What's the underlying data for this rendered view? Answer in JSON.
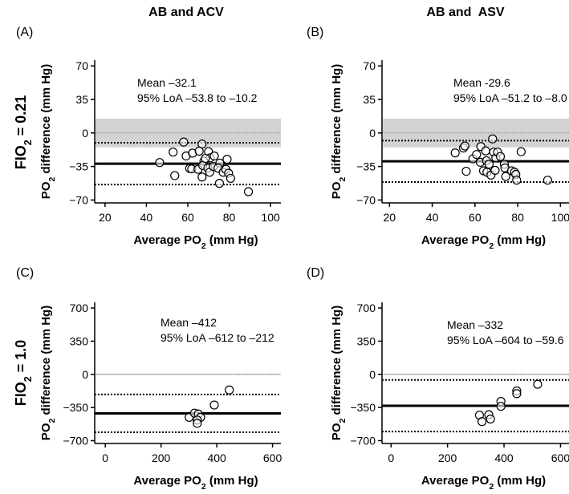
{
  "figure": {
    "columns": [
      "AB and ACV",
      "AB and  ASV"
    ],
    "rows": [
      {
        "pre": "FIO",
        "sub": "2",
        "post": " = 0.21"
      },
      {
        "pre": "FIO",
        "sub": "2",
        "post": " = 1.0"
      }
    ]
  },
  "chart_data": [
    {
      "type": "scatter",
      "panel": "(A)",
      "column": "AB and ACV",
      "row": "FIO2 = 0.21",
      "annotation": [
        "Mean –32.1",
        "95% LoA –53.8 to –10.2"
      ],
      "mean": -32.1,
      "loa": [
        -53.8,
        -10.2
      ],
      "band": [
        -15,
        15
      ],
      "xlabel": {
        "pre": "Average PO",
        "sub": "2",
        "post": " (mm Hg)"
      },
      "ylabel": {
        "pre": "PO",
        "sub": "2",
        "post": " difference (mm Hg)"
      },
      "xticks": [
        20,
        40,
        60,
        80,
        100
      ],
      "xtick_labels": [
        "20",
        "40",
        "60",
        "80",
        "100"
      ],
      "yticks": [
        70,
        35,
        0,
        -35,
        -70
      ],
      "ytick_labels": [
        "70",
        "35",
        "0",
        "−35",
        "−70"
      ],
      "xlim": [
        15,
        105
      ],
      "ylim": [
        -73,
        76
      ],
      "points": [
        [
          46.4,
          -30.9
        ],
        [
          58,
          -9.5
        ],
        [
          66.9,
          -11.6
        ],
        [
          52.9,
          -20
        ],
        [
          53.7,
          -44.5
        ],
        [
          59.2,
          -24
        ],
        [
          62.3,
          -21
        ],
        [
          65.5,
          -19
        ],
        [
          60.9,
          -37
        ],
        [
          61.9,
          -37.5
        ],
        [
          65,
          -38
        ],
        [
          66.9,
          -46
        ],
        [
          70,
          -19.5
        ],
        [
          70.8,
          -26
        ],
        [
          72.8,
          -24
        ],
        [
          67.8,
          -29.5
        ],
        [
          67.2,
          -34
        ],
        [
          69.7,
          -36.7
        ],
        [
          70.6,
          -41
        ],
        [
          72.3,
          -35
        ],
        [
          75.5,
          -31.5
        ],
        [
          74.6,
          -36.7
        ],
        [
          79,
          -27.5
        ],
        [
          77.1,
          -41
        ],
        [
          78.4,
          -38
        ],
        [
          79.7,
          -42
        ],
        [
          80.7,
          -47.4
        ],
        [
          75.3,
          -52.6
        ],
        [
          89.3,
          -61.3
        ],
        [
          68.5,
          -26.6
        ]
      ]
    },
    {
      "type": "scatter",
      "panel": "(B)",
      "column": "AB and ASV",
      "row": "FIO2 = 0.21",
      "annotation": [
        "Mean -29.6",
        "95% LoA –51.2 to –8.0"
      ],
      "mean": -29.6,
      "loa": [
        -51.2,
        -8.0
      ],
      "band": [
        -15,
        15
      ],
      "xlabel": {
        "pre": "Average PO",
        "sub": "2",
        "post": " (mm Hg)"
      },
      "ylabel": {
        "pre": "PO",
        "sub": "2",
        "post": " difference (mm Hg)"
      },
      "xticks": [
        20,
        40,
        60,
        80,
        100
      ],
      "xtick_labels": [
        "20",
        "40",
        "60",
        "80",
        "100"
      ],
      "yticks": [
        70,
        35,
        0,
        -35,
        -70
      ],
      "ytick_labels": [
        "70",
        "35",
        "0",
        "−35",
        "−70"
      ],
      "xlim": [
        16.5,
        104
      ],
      "ylim": [
        -73,
        76
      ],
      "points": [
        [
          50.75,
          -20.8
        ],
        [
          54.6,
          -15.7
        ],
        [
          55.3,
          -13.6
        ],
        [
          55.9,
          -40
        ],
        [
          68.25,
          -6.2
        ],
        [
          62.75,
          -14.2
        ],
        [
          59,
          -27
        ],
        [
          60.75,
          -22.5
        ],
        [
          62.5,
          -30.6
        ],
        [
          64,
          -39.5
        ],
        [
          65,
          -18.7
        ],
        [
          65.4,
          -29
        ],
        [
          65.6,
          -41
        ],
        [
          66.6,
          -32.6
        ],
        [
          67.5,
          -44
        ],
        [
          68.75,
          -20
        ],
        [
          69.75,
          -26
        ],
        [
          69.4,
          -39
        ],
        [
          70.6,
          -20
        ],
        [
          71.9,
          -24.6
        ],
        [
          73.75,
          -32.6
        ],
        [
          74,
          -36.5
        ],
        [
          74.4,
          -45.4
        ],
        [
          77.1,
          -39.5
        ],
        [
          78.5,
          -41
        ],
        [
          79.1,
          -43.3
        ],
        [
          79.5,
          -49.3
        ],
        [
          81.6,
          -19.6
        ],
        [
          94,
          -49.3
        ]
      ]
    },
    {
      "type": "scatter",
      "panel": "(C)",
      "column": "AB and ACV",
      "row": "FIO2 = 1.0",
      "annotation": [
        "Mean –412",
        "95% LoA –612 to –212"
      ],
      "mean": -412,
      "loa": [
        -612,
        -212
      ],
      "band": [
        -8,
        8
      ],
      "xlabel": {
        "pre": "Average PO",
        "sub": "2",
        "post": " (mm Hg)"
      },
      "ylabel": {
        "pre": "PO",
        "sub": "2",
        "post": " difference (mm Hg)"
      },
      "xticks": [
        0,
        200,
        400,
        600
      ],
      "xtick_labels": [
        "0",
        "200",
        "400",
        "600"
      ],
      "yticks": [
        700,
        350,
        0,
        -350,
        -700
      ],
      "ytick_labels": [
        "700",
        "350",
        "0",
        "−350",
        "−700"
      ],
      "xlim": [
        -38,
        630
      ],
      "ylim": [
        -730,
        760
      ],
      "points": [
        [
          445,
          -165
        ],
        [
          391,
          -324
        ],
        [
          301,
          -454
        ],
        [
          320,
          -410
        ],
        [
          334,
          -419
        ],
        [
          342,
          -454
        ],
        [
          330,
          -483
        ],
        [
          330,
          -517
        ]
      ]
    },
    {
      "type": "scatter",
      "panel": "(D)",
      "column": "AB and ASV",
      "row": "FIO2 = 1.0",
      "annotation": [
        "Mean –332",
        "95% LoA –604 to –59.6"
      ],
      "mean": -332,
      "loa": [
        -604,
        -59.6
      ],
      "band": [
        -8,
        8
      ],
      "xlabel": {
        "pre": "Average PO",
        "sub": "2",
        "post": " (mm Hg)"
      },
      "ylabel": {
        "pre": "PO",
        "sub": "2",
        "post": " difference (mm Hg)"
      },
      "xticks": [
        0,
        200,
        400,
        600
      ],
      "xtick_labels": [
        "0",
        "200",
        "400",
        "600"
      ],
      "yticks": [
        700,
        350,
        0,
        -350,
        -700
      ],
      "ytick_labels": [
        "700",
        "350",
        "0",
        "−350",
        "−700"
      ],
      "xlim": [
        -32,
        630
      ],
      "ylim": [
        -730,
        760
      ],
      "points": [
        [
          519,
          -105
        ],
        [
          445,
          -175
        ],
        [
          445,
          -204
        ],
        [
          389,
          -286
        ],
        [
          389,
          -338
        ],
        [
          313,
          -431
        ],
        [
          322,
          -499
        ],
        [
          346,
          -426
        ],
        [
          352,
          -472
        ]
      ]
    }
  ]
}
